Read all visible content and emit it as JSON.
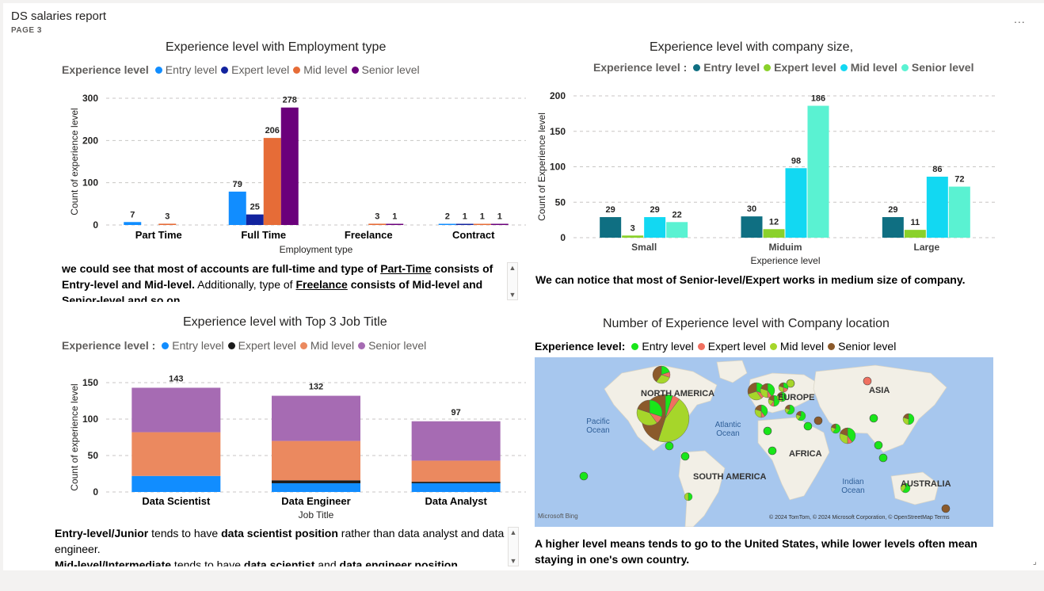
{
  "report": {
    "title": "DS salaries report",
    "page": "PAGE 3",
    "more": "...",
    "resize": "⌟"
  },
  "chart1": {
    "title": "Experience level with Employment type",
    "legend_title": "Experience level",
    "legend": [
      "Entry level",
      "Expert level",
      "Mid level",
      "Senior level"
    ],
    "colors": [
      "#118dff",
      "#12239e",
      "#e66c37",
      "#6b007b"
    ],
    "xlabel": "Employment type",
    "ylabel": "Count of experience level"
  },
  "chart2": {
    "title": "Experience level with company size,",
    "legend_title": "Experience level :",
    "legend": [
      "Entry level",
      "Expert level",
      "Mid level",
      "Senior level"
    ],
    "colors": [
      "#0f6f82",
      "#8ad12a",
      "#12d8f2",
      "#5af2d2"
    ],
    "xlabel": "Experience level",
    "ylabel": "Count of Experience level"
  },
  "chart3": {
    "title": "Experience level with Top 3 Job Title",
    "legend_title": "Experience level :",
    "legend": [
      "Entry level",
      "Expert level",
      "Mid level",
      "Senior level"
    ],
    "colors": [
      "#118dff",
      "#1a1a1a",
      "#eb895f",
      "#a66bb3"
    ],
    "xlabel": "Job Title",
    "ylabel": "Count of experience level"
  },
  "chart4": {
    "title": "Number of Experience level with Company location",
    "legend_title": "Experience level:",
    "legend": [
      "Entry level",
      "Expert level",
      "Mid level",
      "Senior level"
    ],
    "colors": [
      "#19e619",
      "#f07060",
      "#a6d62a",
      "#8b5a2b"
    ],
    "map_labels": [
      "NORTH AMERICA",
      "EUROPE",
      "ASIA",
      "Pacific Ocean",
      "Atlantic Ocean",
      "AFRICA",
      "SOUTH AMERICA",
      "Indian Ocean",
      "AUSTRALIA"
    ],
    "attribution": "© 2024 TomTom, © 2024 Microsoft Corporation, © OpenStreetMap  Terms",
    "bing_logo": "Microsoft Bing"
  },
  "notes": {
    "note1_a": "we could see that most of accounts are full-time and type of ",
    "note1_b": "Part-Time",
    "note1_c": " consists of Entry-level and Mid-level.",
    "note1_d": " Additionally, type of ",
    "note1_e": "Freelance",
    "note1_f": " consists of Mid-level and Senior-level and so on.",
    "note2": "We can notice that most of Senior-level/Expert works in medium size of company.",
    "note3_a": "Entry-level/Junior",
    "note3_b": " tends to have ",
    "note3_c": "data scientist position",
    "note3_d": " rather than data analyst and data engineer.",
    "note3_e": "Mid-level/Intermediate",
    "note3_f": " tends to have ",
    "note3_g": "data scientist",
    "note3_h": " and ",
    "note3_i": "data engineer position",
    "note4": "A higher level means tends to go to the United States, while lower levels often mean staying in one's own country."
  },
  "chart_data": [
    {
      "type": "bar",
      "title": "Experience level with Employment type",
      "xlabel": "Employment type",
      "ylabel": "Count of experience level",
      "categories": [
        "Part Time",
        "Full Time",
        "Freelance",
        "Contract"
      ],
      "ylim": [
        0,
        300
      ],
      "yticks": [
        0,
        100,
        200,
        300
      ],
      "series": [
        {
          "name": "Entry level",
          "values": [
            7,
            79,
            0,
            2
          ]
        },
        {
          "name": "Expert level",
          "values": [
            0,
            25,
            0,
            1
          ]
        },
        {
          "name": "Mid level",
          "values": [
            3,
            206,
            3,
            1
          ]
        },
        {
          "name": "Senior level",
          "values": [
            0,
            278,
            1,
            1
          ]
        }
      ]
    },
    {
      "type": "bar",
      "title": "Experience level with company size,",
      "xlabel": "Experience level",
      "ylabel": "Count of Experience level",
      "categories": [
        "Small",
        "Miduim",
        "Large"
      ],
      "ylim": [
        0,
        200
      ],
      "yticks": [
        0,
        50,
        100,
        150,
        200
      ],
      "series": [
        {
          "name": "Entry level",
          "values": [
            29,
            30,
            29
          ]
        },
        {
          "name": "Expert level",
          "values": [
            3,
            12,
            11
          ]
        },
        {
          "name": "Mid level",
          "values": [
            29,
            98,
            86
          ]
        },
        {
          "name": "Senior level",
          "values": [
            22,
            186,
            72
          ]
        }
      ]
    },
    {
      "type": "bar",
      "stacked": true,
      "title": "Experience level with Top 3 Job Title",
      "xlabel": "Job Title",
      "ylabel": "Count of experience level",
      "categories": [
        "Data Scientist",
        "Data Engineer",
        "Data Analyst"
      ],
      "ylim": [
        0,
        150
      ],
      "yticks": [
        0,
        50,
        100,
        150
      ],
      "totals": [
        143,
        132,
        97
      ],
      "series": [
        {
          "name": "Entry level",
          "values": [
            22,
            12,
            12
          ]
        },
        {
          "name": "Expert level",
          "values": [
            0,
            4,
            2
          ]
        },
        {
          "name": "Mid level",
          "values": [
            60,
            54,
            29
          ]
        },
        {
          "name": "Senior level",
          "values": [
            61,
            62,
            54
          ]
        }
      ]
    }
  ]
}
